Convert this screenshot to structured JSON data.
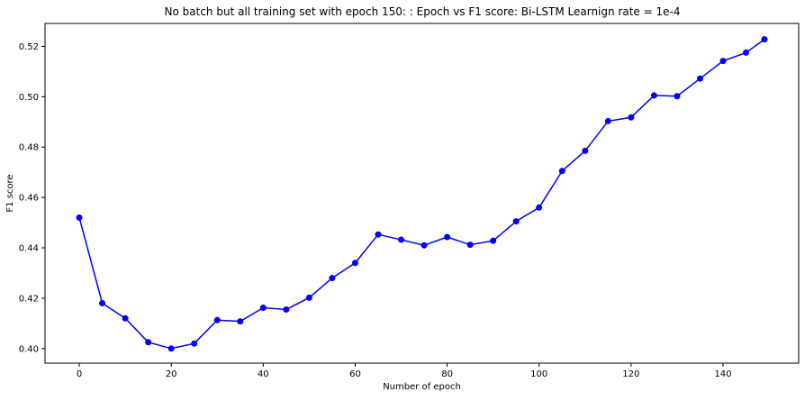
{
  "chart_data": {
    "type": "line",
    "title": "No batch but all training set with epoch 150: : Epoch vs F1 score: Bi-LSTM Learnign rate = 1e-4",
    "xlabel": "Number of epoch",
    "ylabel": "F1 score",
    "xlim": [
      -7.45,
      156.45
    ],
    "ylim": [
      0.3942,
      0.5291
    ],
    "x_ticks": [
      0,
      20,
      40,
      60,
      80,
      100,
      120,
      140
    ],
    "x_tick_labels": [
      "0",
      "20",
      "40",
      "60",
      "80",
      "100",
      "120",
      "140"
    ],
    "y_ticks": [
      0.4,
      0.42,
      0.44,
      0.46,
      0.48,
      0.5,
      0.52
    ],
    "y_tick_labels": [
      "0.40",
      "0.42",
      "0.44",
      "0.46",
      "0.48",
      "0.50",
      "0.52"
    ],
    "grid": false,
    "legend": "none",
    "series": [
      {
        "color": "#0000ff",
        "marker": "circle",
        "x": [
          0,
          5,
          10,
          15,
          20,
          25,
          30,
          35,
          40,
          45,
          50,
          55,
          60,
          65,
          70,
          75,
          80,
          85,
          90,
          95,
          100,
          105,
          110,
          115,
          120,
          125,
          130,
          135,
          140,
          145,
          149
        ],
        "y": [
          0.452,
          0.418,
          0.412,
          0.4025,
          0.4,
          0.402,
          0.4113,
          0.4108,
          0.4162,
          0.4155,
          0.4202,
          0.428,
          0.434,
          0.4453,
          0.4432,
          0.441,
          0.4443,
          0.4412,
          0.4428,
          0.4505,
          0.456,
          0.4705,
          0.4785,
          0.4903,
          0.4918,
          0.5005,
          0.5002,
          0.5072,
          0.5142,
          0.5175,
          0.5228
        ]
      }
    ]
  }
}
